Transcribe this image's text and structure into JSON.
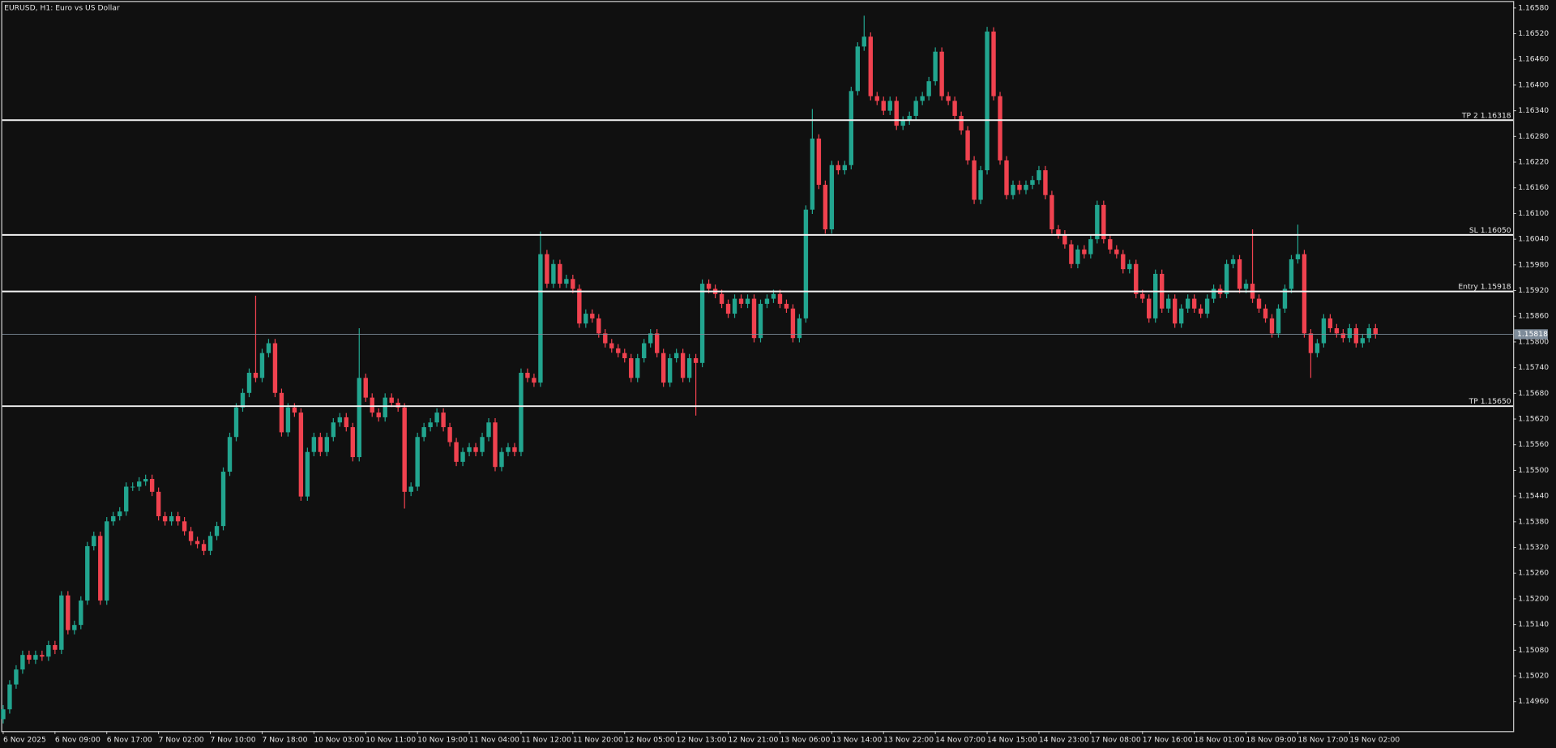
{
  "chart_data": {
    "type": "candlestick",
    "title": "EURUSD, H1:  Euro vs US Dollar",
    "up_color": "#22a58f",
    "down_color": "#f0424f",
    "open": [
      1.14919,
      1.14942,
      1.15,
      1.15035,
      1.15069,
      1.15058,
      1.15069,
      1.15065,
      1.15092,
      1.15081,
      1.15208,
      1.15127,
      1.15139,
      1.15196,
      1.15323,
      1.15347,
      1.15196,
      1.15381,
      1.15393,
      1.15404,
      1.15462,
      1.15462,
      1.15474,
      1.1548,
      1.1545,
      1.15393,
      1.15381,
      1.15393,
      1.15381,
      1.15358,
      1.15335,
      1.15328,
      1.15312,
      1.15347,
      1.1537,
      1.15497,
      1.15578,
      1.15647,
      1.15681,
      1.15728,
      1.15716,
      1.15774,
      1.15797,
      1.15681,
      1.15589,
      1.15647,
      1.15635,
      1.15439,
      1.15543,
      1.15578,
      1.15543,
      1.15578,
      1.15612,
      1.15624,
      1.15601,
      1.15531,
      1.15716,
      1.1567,
      1.15635,
      1.15624,
      1.1567,
      1.15658,
      1.15647,
      1.1545,
      1.15462,
      1.15578,
      1.15601,
      1.15612,
      1.15635,
      1.15601,
      1.15566,
      1.1552,
      1.15543,
      1.15554,
      1.15543,
      1.15578,
      1.15612,
      1.15508,
      1.15543,
      1.15554,
      1.15543,
      1.15728,
      1.15716,
      1.15705,
      1.16005,
      1.15936,
      1.15982,
      1.15936,
      1.15947,
      1.15924,
      1.15843,
      1.15866,
      1.15855,
      1.1582,
      1.15797,
      1.15785,
      1.15774,
      1.15762,
      1.15716,
      1.15762,
      1.15797,
      1.1582,
      1.15774,
      1.15705,
      1.15762,
      1.15774,
      1.15716,
      1.15762,
      1.15751,
      1.15936,
      1.15924,
      1.15912,
      1.15889,
      1.15866,
      1.15901,
      1.15889,
      1.15901,
      1.15809,
      1.15889,
      1.15901,
      1.15912,
      1.15889,
      1.15878,
      1.15809,
      1.15855,
      1.16109,
      1.16275,
      1.16167,
      1.16063,
      1.16213,
      1.16201,
      1.16213,
      1.16386,
      1.1649,
      1.16513,
      1.16374,
      1.16363,
      1.1634,
      1.16363,
      1.16305,
      1.16317,
      1.16328,
      1.16363,
      1.16374,
      1.16409,
      1.16478,
      1.16374,
      1.16363,
      1.16328,
      1.16294,
      1.16224,
      1.16132,
      1.16201,
      1.16525,
      1.16374,
      1.16224,
      1.16143,
      1.16167,
      1.16155,
      1.16167,
      1.16178,
      1.16201,
      1.16143,
      1.16063,
      1.16051,
      1.16028,
      1.15982,
      1.16016,
      1.16005,
      1.1604,
      1.1612,
      1.1604,
      1.16016,
      1.16005,
      1.1597,
      1.15982,
      1.15912,
      1.15901,
      1.15855,
      1.15959,
      1.15878,
      1.15901,
      1.15843,
      1.15878,
      1.15901,
      1.15878,
      1.15866,
      1.15901,
      1.15924,
      1.15912,
      1.15982,
      1.15993,
      1.15924,
      1.15936,
      1.15901,
      1.15878,
      1.15855,
      1.1582,
      1.15878,
      1.15924,
      1.15993,
      1.16005,
      1.1582,
      1.15774,
      1.15797,
      1.15855,
      1.15832,
      1.1582,
      1.15809,
      1.15832,
      1.15797,
      1.15809,
      1.15832
    ],
    "high": [
      1.14952,
      1.1501,
      1.15045,
      1.15079,
      1.15079,
      1.15079,
      1.15079,
      1.15102,
      1.15102,
      1.15218,
      1.15218,
      1.15149,
      1.15206,
      1.15333,
      1.15357,
      1.15357,
      1.15391,
      1.15403,
      1.15414,
      1.15472,
      1.15472,
      1.15484,
      1.1549,
      1.1549,
      1.1546,
      1.15403,
      1.15403,
      1.15403,
      1.15391,
      1.15368,
      1.15345,
      1.15338,
      1.15357,
      1.1538,
      1.15507,
      1.15588,
      1.15657,
      1.15691,
      1.15738,
      1.15908,
      1.15784,
      1.15807,
      1.15807,
      1.15691,
      1.15657,
      1.15657,
      1.15645,
      1.15553,
      1.15588,
      1.15588,
      1.15588,
      1.15622,
      1.15634,
      1.15634,
      1.15611,
      1.15832,
      1.15726,
      1.1568,
      1.15645,
      1.1568,
      1.1568,
      1.15668,
      1.15657,
      1.15472,
      1.15588,
      1.15611,
      1.15622,
      1.15645,
      1.15645,
      1.15611,
      1.15576,
      1.15553,
      1.15564,
      1.15564,
      1.15588,
      1.15622,
      1.15622,
      1.15553,
      1.15564,
      1.15564,
      1.15738,
      1.15738,
      1.15726,
      1.16058,
      1.16015,
      1.15992,
      1.15992,
      1.15957,
      1.15957,
      1.15934,
      1.15876,
      1.15876,
      1.15865,
      1.1583,
      1.15807,
      1.15795,
      1.15784,
      1.15772,
      1.15772,
      1.15807,
      1.1583,
      1.1583,
      1.15784,
      1.15772,
      1.15784,
      1.15784,
      1.15772,
      1.15772,
      1.15946,
      1.15946,
      1.15934,
      1.15922,
      1.15899,
      1.15911,
      1.15911,
      1.15911,
      1.15911,
      1.15899,
      1.15911,
      1.15922,
      1.15922,
      1.15899,
      1.15888,
      1.15865,
      1.16119,
      1.16344,
      1.16285,
      1.16177,
      1.16223,
      1.16223,
      1.16223,
      1.16396,
      1.165,
      1.16562,
      1.16523,
      1.16384,
      1.16373,
      1.16373,
      1.16373,
      1.16327,
      1.16338,
      1.16373,
      1.16384,
      1.16419,
      1.16488,
      1.16488,
      1.16384,
      1.16373,
      1.16338,
      1.16304,
      1.16234,
      1.16211,
      1.16536,
      1.16535,
      1.16384,
      1.16234,
      1.16177,
      1.16177,
      1.16177,
      1.16188,
      1.16211,
      1.16211,
      1.16153,
      1.16073,
      1.16061,
      1.16038,
      1.16026,
      1.16026,
      1.1605,
      1.1613,
      1.1613,
      1.1605,
      1.16026,
      1.16015,
      1.15992,
      1.15992,
      1.15922,
      1.15911,
      1.15969,
      1.15969,
      1.15911,
      1.15911,
      1.15888,
      1.15911,
      1.15911,
      1.15888,
      1.15911,
      1.15934,
      1.15934,
      1.15992,
      1.16003,
      1.16003,
      1.15946,
      1.16063,
      1.15911,
      1.15888,
      1.15865,
      1.15888,
      1.15934,
      1.16003,
      1.16074,
      1.16015,
      1.1583,
      1.15807,
      1.15865,
      1.15865,
      1.15842,
      1.1583,
      1.15842,
      1.15842,
      1.15819,
      1.15842,
      1.15842
    ],
    "low": [
      1.14909,
      1.14932,
      1.1499,
      1.15025,
      1.15048,
      1.15048,
      1.15055,
      1.15055,
      1.15071,
      1.15071,
      1.15117,
      1.15117,
      1.15129,
      1.15186,
      1.15313,
      1.15186,
      1.15186,
      1.15371,
      1.15383,
      1.15394,
      1.15452,
      1.15452,
      1.15464,
      1.1544,
      1.15383,
      1.15371,
      1.15371,
      1.15371,
      1.15348,
      1.15325,
      1.15318,
      1.15302,
      1.15302,
      1.15337,
      1.1536,
      1.15487,
      1.15568,
      1.15637,
      1.15671,
      1.15706,
      1.15706,
      1.15764,
      1.15671,
      1.15579,
      1.15579,
      1.15625,
      1.15429,
      1.15429,
      1.15533,
      1.15533,
      1.15533,
      1.15568,
      1.15602,
      1.15591,
      1.15521,
      1.15521,
      1.1566,
      1.15625,
      1.15614,
      1.15614,
      1.15648,
      1.15637,
      1.15411,
      1.1544,
      1.15452,
      1.15568,
      1.15591,
      1.15602,
      1.15591,
      1.15556,
      1.1551,
      1.1551,
      1.15533,
      1.15533,
      1.15533,
      1.15568,
      1.15498,
      1.15498,
      1.15533,
      1.15533,
      1.15533,
      1.15706,
      1.15695,
      1.15695,
      1.15926,
      1.15926,
      1.15926,
      1.15926,
      1.15914,
      1.15833,
      1.15833,
      1.15845,
      1.1581,
      1.15787,
      1.15775,
      1.15764,
      1.15752,
      1.15706,
      1.15706,
      1.15752,
      1.15787,
      1.15764,
      1.15695,
      1.15695,
      1.15752,
      1.15706,
      1.15706,
      1.15628,
      1.15741,
      1.15914,
      1.15902,
      1.15879,
      1.15856,
      1.15856,
      1.15879,
      1.15879,
      1.15799,
      1.15799,
      1.15879,
      1.15891,
      1.15879,
      1.15868,
      1.15799,
      1.15799,
      1.15845,
      1.16099,
      1.16157,
      1.16053,
      1.16053,
      1.16191,
      1.16191,
      1.16203,
      1.16376,
      1.1648,
      1.16364,
      1.16353,
      1.1633,
      1.1633,
      1.16295,
      1.16295,
      1.16307,
      1.16318,
      1.16353,
      1.16364,
      1.16399,
      1.16364,
      1.16353,
      1.16318,
      1.16284,
      1.16214,
      1.16122,
      1.16122,
      1.16191,
      1.16364,
      1.16214,
      1.16133,
      1.16133,
      1.16145,
      1.16145,
      1.16157,
      1.16168,
      1.16133,
      1.16053,
      1.16041,
      1.16018,
      1.15972,
      1.15972,
      1.15995,
      1.15995,
      1.1603,
      1.1603,
      1.16006,
      1.15995,
      1.1596,
      1.1596,
      1.15902,
      1.15891,
      1.15845,
      1.15845,
      1.15868,
      1.15868,
      1.15833,
      1.15833,
      1.15868,
      1.15868,
      1.15856,
      1.15856,
      1.15891,
      1.15902,
      1.15902,
      1.15972,
      1.15914,
      1.15914,
      1.15891,
      1.15868,
      1.15845,
      1.1581,
      1.1581,
      1.15868,
      1.15914,
      1.15983,
      1.1581,
      1.15716,
      1.15764,
      1.15787,
      1.15822,
      1.1581,
      1.15799,
      1.15799,
      1.15787,
      1.15787,
      1.15799,
      1.15808
    ],
    "close": [
      1.14942,
      1.15,
      1.15035,
      1.15069,
      1.15058,
      1.15069,
      1.15065,
      1.15092,
      1.15081,
      1.15208,
      1.15127,
      1.15139,
      1.15196,
      1.15323,
      1.15347,
      1.15196,
      1.15381,
      1.15393,
      1.15404,
      1.15462,
      1.15462,
      1.15474,
      1.1548,
      1.1545,
      1.15393,
      1.15381,
      1.15393,
      1.15381,
      1.15358,
      1.15335,
      1.15328,
      1.15312,
      1.15347,
      1.1537,
      1.15497,
      1.15578,
      1.15647,
      1.15681,
      1.15728,
      1.15716,
      1.15774,
      1.15797,
      1.15681,
      1.15589,
      1.15647,
      1.15635,
      1.15439,
      1.15543,
      1.15578,
      1.15543,
      1.15578,
      1.15612,
      1.15624,
      1.15601,
      1.15531,
      1.15716,
      1.1567,
      1.15635,
      1.15624,
      1.1567,
      1.15658,
      1.15647,
      1.1545,
      1.15462,
      1.15578,
      1.15601,
      1.15612,
      1.15635,
      1.15601,
      1.15566,
      1.1552,
      1.15543,
      1.15554,
      1.15543,
      1.15578,
      1.15612,
      1.15508,
      1.15543,
      1.15554,
      1.15543,
      1.15728,
      1.15716,
      1.15705,
      1.16005,
      1.15936,
      1.15982,
      1.15936,
      1.15947,
      1.15924,
      1.15843,
      1.15866,
      1.15855,
      1.1582,
      1.15797,
      1.15785,
      1.15774,
      1.15762,
      1.15716,
      1.15762,
      1.15797,
      1.1582,
      1.15774,
      1.15705,
      1.15762,
      1.15774,
      1.15716,
      1.15762,
      1.15751,
      1.15936,
      1.15924,
      1.15912,
      1.15889,
      1.15866,
      1.15901,
      1.15889,
      1.15901,
      1.15809,
      1.15889,
      1.15901,
      1.15912,
      1.15889,
      1.15878,
      1.15809,
      1.15855,
      1.16109,
      1.16275,
      1.16167,
      1.16063,
      1.16213,
      1.16201,
      1.16213,
      1.16386,
      1.1649,
      1.16513,
      1.16374,
      1.16363,
      1.1634,
      1.16363,
      1.16305,
      1.16317,
      1.16328,
      1.16363,
      1.16374,
      1.16409,
      1.16478,
      1.16374,
      1.16363,
      1.16328,
      1.16294,
      1.16224,
      1.16132,
      1.16201,
      1.16525,
      1.16374,
      1.16224,
      1.16143,
      1.16167,
      1.16155,
      1.16167,
      1.16178,
      1.16201,
      1.16143,
      1.16063,
      1.16051,
      1.16028,
      1.15982,
      1.16016,
      1.16005,
      1.1604,
      1.1612,
      1.1604,
      1.16016,
      1.16005,
      1.1597,
      1.15982,
      1.15912,
      1.15901,
      1.15855,
      1.15959,
      1.15878,
      1.15901,
      1.15843,
      1.15878,
      1.15901,
      1.15878,
      1.15866,
      1.15901,
      1.15924,
      1.15912,
      1.15982,
      1.15993,
      1.15924,
      1.15936,
      1.15901,
      1.15878,
      1.15855,
      1.1582,
      1.15878,
      1.15924,
      1.15993,
      1.16005,
      1.1582,
      1.15774,
      1.15797,
      1.15855,
      1.15832,
      1.1582,
      1.15809,
      1.15832,
      1.15797,
      1.15809,
      1.15832,
      1.15818
    ],
    "ylim": [
      1.14891,
      1.16594
    ],
    "yticks": [
      {
        "value": 1.1496,
        "label": "1.14960"
      },
      {
        "value": 1.1502,
        "label": "1.15020"
      },
      {
        "value": 1.1508,
        "label": "1.15080"
      },
      {
        "value": 1.1514,
        "label": "1.15140"
      },
      {
        "value": 1.152,
        "label": "1.15200"
      },
      {
        "value": 1.1526,
        "label": "1.15260"
      },
      {
        "value": 1.1532,
        "label": "1.15320"
      },
      {
        "value": 1.1538,
        "label": "1.15380"
      },
      {
        "value": 1.1544,
        "label": "1.15440"
      },
      {
        "value": 1.155,
        "label": "1.15500"
      },
      {
        "value": 1.1556,
        "label": "1.15560"
      },
      {
        "value": 1.1562,
        "label": "1.15620"
      },
      {
        "value": 1.1568,
        "label": "1.15680"
      },
      {
        "value": 1.1574,
        "label": "1.15740"
      },
      {
        "value": 1.158,
        "label": "1.15800"
      },
      {
        "value": 1.1586,
        "label": "1.15860"
      },
      {
        "value": 1.1592,
        "label": "1.15920"
      },
      {
        "value": 1.1598,
        "label": "1.15980"
      },
      {
        "value": 1.1604,
        "label": "1.16040"
      },
      {
        "value": 1.161,
        "label": "1.16100"
      },
      {
        "value": 1.1616,
        "label": "1.16160"
      },
      {
        "value": 1.1622,
        "label": "1.16220"
      },
      {
        "value": 1.1628,
        "label": "1.16280"
      },
      {
        "value": 1.1634,
        "label": "1.16340"
      },
      {
        "value": 1.164,
        "label": "1.16400"
      },
      {
        "value": 1.1646,
        "label": "1.16460"
      },
      {
        "value": 1.1652,
        "label": "1.16520"
      },
      {
        "value": 1.1658,
        "label": "1.16580"
      }
    ],
    "xticks": [
      {
        "value": 0,
        "label": "6 Nov 2025"
      },
      {
        "value": 8,
        "label": "6 Nov 09:00"
      },
      {
        "value": 16,
        "label": "6 Nov 17:00"
      },
      {
        "value": 24,
        "label": "7 Nov 02:00"
      },
      {
        "value": 32,
        "label": "7 Nov 10:00"
      },
      {
        "value": 40,
        "label": "7 Nov 18:00"
      },
      {
        "value": 48,
        "label": "10 Nov 03:00"
      },
      {
        "value": 56,
        "label": "10 Nov 11:00"
      },
      {
        "value": 64,
        "label": "10 Nov 19:00"
      },
      {
        "value": 72,
        "label": "11 Nov 04:00"
      },
      {
        "value": 80,
        "label": "11 Nov 12:00"
      },
      {
        "value": 88,
        "label": "11 Nov 20:00"
      },
      {
        "value": 96,
        "label": "12 Nov 05:00"
      },
      {
        "value": 104,
        "label": "12 Nov 13:00"
      },
      {
        "value": 112,
        "label": "12 Nov 21:00"
      },
      {
        "value": 120,
        "label": "13 Nov 06:00"
      },
      {
        "value": 128,
        "label": "13 Nov 14:00"
      },
      {
        "value": 136,
        "label": "13 Nov 22:00"
      },
      {
        "value": 144,
        "label": "14 Nov 07:00"
      },
      {
        "value": 152,
        "label": "14 Nov 15:00"
      },
      {
        "value": 160,
        "label": "14 Nov 23:00"
      },
      {
        "value": 168,
        "label": "17 Nov 08:00"
      },
      {
        "value": 176,
        "label": "17 Nov 16:00"
      },
      {
        "value": 184,
        "label": "18 Nov 01:00"
      },
      {
        "value": 192,
        "label": "18 Nov 09:00"
      },
      {
        "value": 200,
        "label": "18 Nov 17:00"
      },
      {
        "value": 208,
        "label": "19 Nov 02:00"
      }
    ],
    "levels": [
      {
        "value": 1.16318,
        "label": "TP 2 1.16318"
      },
      {
        "value": 1.1605,
        "label": "SL 1.16050"
      },
      {
        "value": 1.15918,
        "label": "Entry 1.15918"
      },
      {
        "value": 1.1565,
        "label": "TP 1.15650"
      }
    ],
    "level_color": "#f2f2f2",
    "bid": {
      "value": 1.15818,
      "label": "1.15818",
      "color": "#7d8b99"
    }
  }
}
